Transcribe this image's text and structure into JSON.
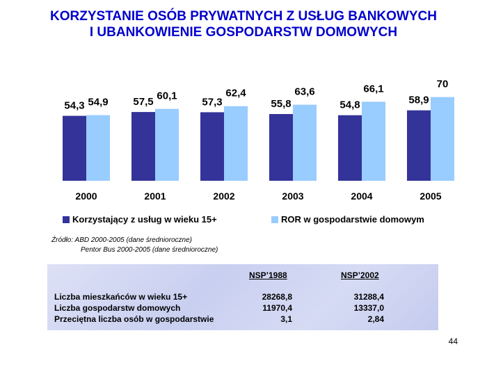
{
  "title": {
    "line1": "KORZYSTANIE OSÓB PRYWATNYCH Z USŁUG BANKOWYCH",
    "line2": "I UBANKOWIENIE GOSPODARSTW DOMOWYCH"
  },
  "chart_data": {
    "type": "bar",
    "categories": [
      "2000",
      "2001",
      "2002",
      "2003",
      "2004",
      "2005"
    ],
    "series": [
      {
        "name": "Korzystający z usług w wieku 15+",
        "values": [
          54.3,
          57.5,
          57.3,
          55.8,
          54.8,
          58.9
        ],
        "labels": [
          "54,3",
          "57,5",
          "57,3",
          "55,8",
          "54,8",
          "58,9"
        ],
        "color": "#333399"
      },
      {
        "name": "ROR w gospodarstwie domowym",
        "values": [
          54.9,
          60.1,
          62.4,
          63.6,
          66.1,
          70
        ],
        "labels": [
          "54,9",
          "60,1",
          "62,4",
          "63,6",
          "66,1",
          "70"
        ],
        "color": "#99ccff"
      }
    ],
    "legend_position": "bottom",
    "grid": false
  },
  "source": {
    "line1": "Źródło: ABD 2000-2005 (dane średnioroczne)",
    "line2": "Pentor Bus 2000-2005 (dane średnioroczne)"
  },
  "table": {
    "headers": [
      "NSP’1988",
      "NSP’2002"
    ],
    "rows": [
      {
        "label": "Liczba mieszkańców w wieku 15+",
        "v1": "28268,8",
        "v2": "31288,4"
      },
      {
        "label": "Liczba gospodarstw domowych",
        "v1": "11970,4",
        "v2": "13337,0"
      },
      {
        "label": "Przeciętna liczba osób w gospodarstwie",
        "v1": "3,1",
        "v2": "2,84"
      }
    ]
  },
  "page_number": "44"
}
